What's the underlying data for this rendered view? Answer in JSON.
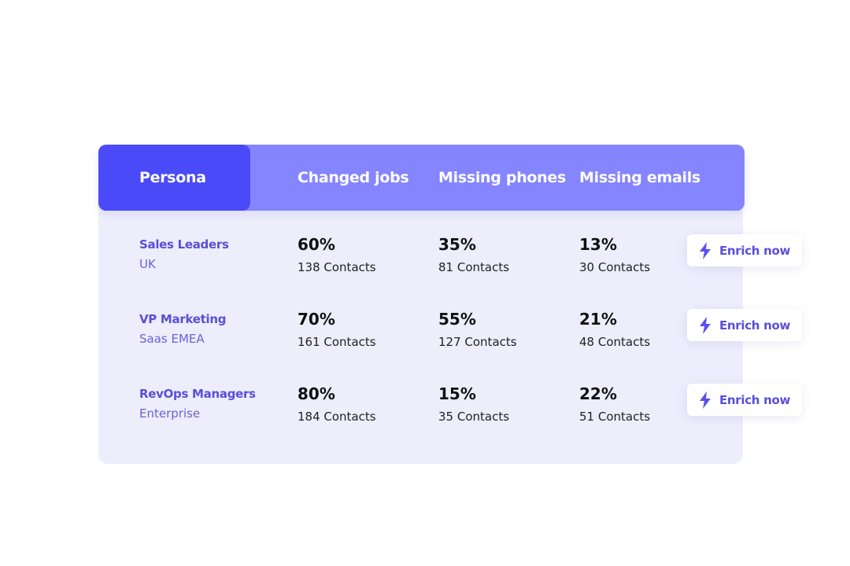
{
  "header": {
    "persona": "Persona",
    "changed_jobs": "Changed jobs",
    "missing_phones": "Missing phones",
    "missing_emails": "Missing emails"
  },
  "rows": [
    {
      "persona": "Sales Leaders",
      "segment": "UK",
      "changed_jobs": {
        "pct": "60%",
        "contacts": "138 Contacts"
      },
      "missing_phones": {
        "pct": "35%",
        "contacts": "81 Contacts"
      },
      "missing_emails": {
        "pct": "13%",
        "contacts": "30 Contacts"
      },
      "action": "Enrich now"
    },
    {
      "persona": "VP Marketing",
      "segment": "Saas EMEA",
      "changed_jobs": {
        "pct": "70%",
        "contacts": "161 Contacts"
      },
      "missing_phones": {
        "pct": "55%",
        "contacts": "127 Contacts"
      },
      "missing_emails": {
        "pct": "21%",
        "contacts": "48 Contacts"
      },
      "action": "Enrich now"
    },
    {
      "persona": "RevOps Managers",
      "segment": "Enterprise",
      "changed_jobs": {
        "pct": "80%",
        "contacts": "184 Contacts"
      },
      "missing_phones": {
        "pct": "15%",
        "contacts": "35 Contacts"
      },
      "missing_emails": {
        "pct": "22%",
        "contacts": "51 Contacts"
      },
      "action": "Enrich now"
    }
  ],
  "colors": {
    "accent": "#4a4af9",
    "header": "#8585ff",
    "card": "#ededfc",
    "link": "#5a4fd6"
  },
  "icons": {
    "action": "lightning-bolt-icon"
  }
}
